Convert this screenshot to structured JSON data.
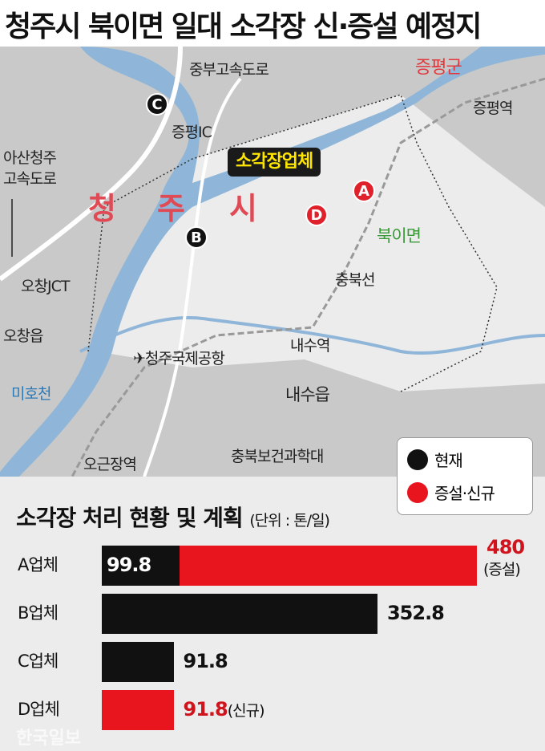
{
  "title": "청주시 북이면 일대 소각장 신·증설 예정지",
  "map": {
    "labels": {
      "jungbu": "중부고속도로",
      "jeungpyeong_gun": "증평군",
      "jeungpyeong_station": "증평역",
      "jeungpyeong_ic": "증평IC",
      "asan1": "아산청주",
      "asan2": "고속도로",
      "ochang_jct": "오창JCT",
      "ochang": "오창읍",
      "mihocheon": "미호천",
      "airport": "청주국제공항",
      "naesu_station": "내수역",
      "naesu": "내수읍",
      "chungbuk_line": "충북선",
      "bugi": "북이면",
      "ogeunjang": "오근장역",
      "college": "충북보건과학대",
      "city1": "청",
      "city2": "주",
      "city3": "시"
    },
    "callout": "소각장업체",
    "markers": [
      {
        "id": "A",
        "color": "#e0202a"
      },
      {
        "id": "B",
        "color": "#111111"
      },
      {
        "id": "C",
        "color": "#111111"
      },
      {
        "id": "D",
        "color": "#e0202a"
      }
    ]
  },
  "legend": [
    {
      "label": "현재",
      "color": "#111111"
    },
    {
      "label": "증설·신규",
      "color": "#e8141e"
    }
  ],
  "chart_data": {
    "type": "bar",
    "orientation": "horizontal",
    "stacked": true,
    "title": "소각장 처리 현황 및 계획",
    "unit": "(단위 : 톤/일)",
    "categories": [
      "A업체",
      "B업체",
      "C업체",
      "D업체"
    ],
    "series": [
      {
        "name": "현재",
        "color": "#111111",
        "values": [
          99.8,
          352.8,
          91.8,
          0
        ]
      },
      {
        "name": "증설·신규",
        "color": "#e8141e",
        "values": [
          380.2,
          0,
          0,
          91.8
        ]
      }
    ],
    "labels": [
      "480",
      "352.8",
      "91.8",
      "91.8"
    ],
    "label_colors": [
      "#d0141e",
      "#111111",
      "#111111",
      "#d0141e"
    ],
    "inner_label": "99.8",
    "notes": [
      "(증설)",
      "",
      "",
      "(신규)"
    ],
    "xlim": [
      0,
      480
    ]
  },
  "watermark": "한국일보"
}
